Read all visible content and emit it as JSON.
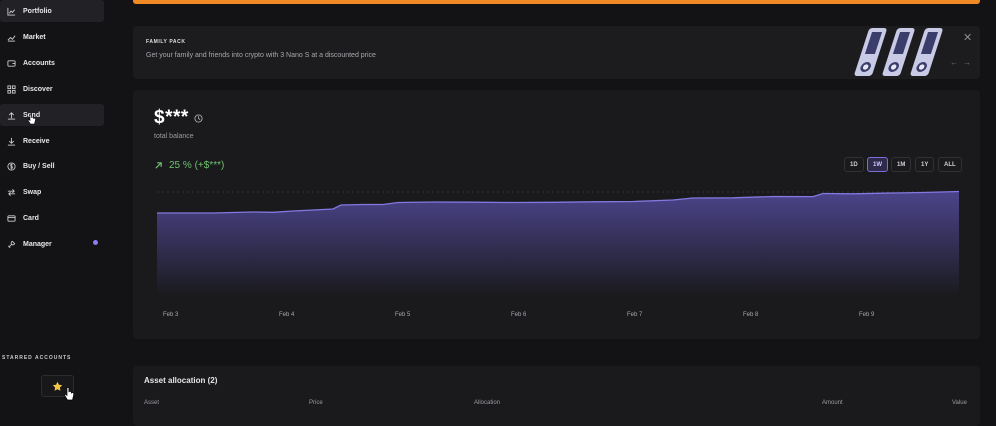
{
  "sidebar": {
    "items": [
      {
        "label": "Portfolio",
        "icon": "chart-line-icon",
        "active": true
      },
      {
        "label": "Market",
        "icon": "trend-icon"
      },
      {
        "label": "Accounts",
        "icon": "wallet-icon"
      },
      {
        "label": "Discover",
        "icon": "grid-icon"
      },
      {
        "label": "Send",
        "icon": "arrow-up-icon"
      },
      {
        "label": "Receive",
        "icon": "arrow-down-icon"
      },
      {
        "label": "Buy / Sell",
        "icon": "dollar-icon"
      },
      {
        "label": "Swap",
        "icon": "swap-icon"
      },
      {
        "label": "Card",
        "icon": "card-icon"
      },
      {
        "label": "Manager",
        "icon": "manager-icon",
        "notification": true
      }
    ],
    "starred_title": "STARRED ACCOUNTS"
  },
  "banner": {
    "title": "FAMILY PACK",
    "description": "Get your family and friends into crypto with 3 Nano S at a discounted price",
    "close": "✕",
    "prev": "←",
    "next": "→"
  },
  "balance": {
    "value": "$***",
    "label": "total balance",
    "change": "25 % (+$***)",
    "change_color": "#6fc36f",
    "ranges": [
      "1D",
      "1W",
      "1M",
      "1Y",
      "ALL"
    ],
    "active_range": "1W"
  },
  "chart_data": {
    "type": "area",
    "x": [
      "Feb 3",
      "Feb 4",
      "Feb 5",
      "Feb 6",
      "Feb 7",
      "Feb 8",
      "Feb 9"
    ],
    "color": "#7a6fd6"
  },
  "allocation": {
    "title": "Asset allocation (2)",
    "columns": [
      "Asset",
      "Price",
      "Allocation",
      "Amount",
      "Value"
    ]
  },
  "colors": {
    "accent": "#7a6fd6",
    "banner_top": "#f08a24"
  }
}
